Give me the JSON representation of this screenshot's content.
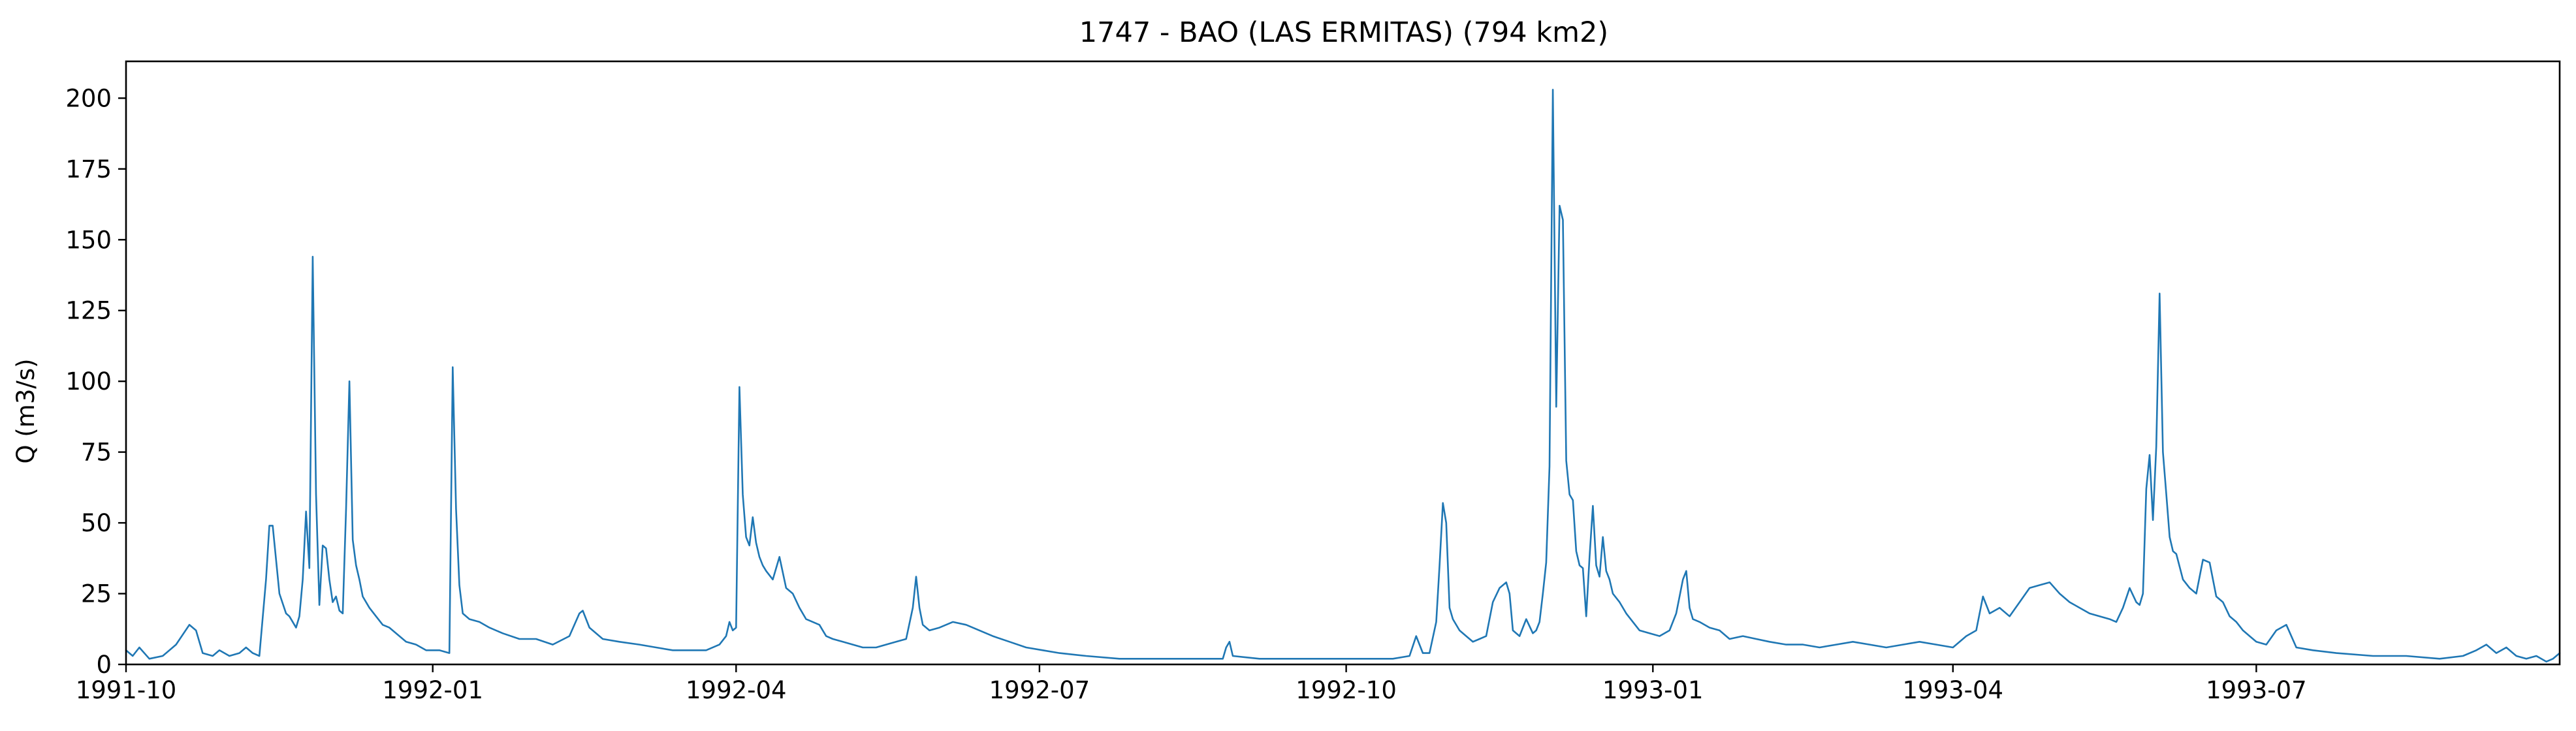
{
  "colors": {
    "line": "#1f77b4",
    "axis": "#000000",
    "background": "#ffffff"
  },
  "chart_data": {
    "type": "line",
    "title": "1747 - BAO (LAS ERMITAS) (794 km2)",
    "xlabel": "",
    "ylabel": "Q (m3/s)",
    "xlim": [
      "1991-10-01",
      "1993-09-30"
    ],
    "ylim": [
      0,
      213
    ],
    "grid": false,
    "legend": "none",
    "x_ticks": [
      "1991-10-01",
      "1992-01-01",
      "1992-04-01",
      "1992-07-01",
      "1992-10-01",
      "1993-01-01",
      "1993-04-01",
      "1993-07-01"
    ],
    "x_tick_labels": [
      "1991-10",
      "1992-01",
      "1992-04",
      "1992-07",
      "1992-10",
      "1993-01",
      "1993-04",
      "1993-07"
    ],
    "y_ticks": [
      0,
      25,
      50,
      75,
      100,
      125,
      150,
      175,
      200
    ],
    "y_tick_labels": [
      "0",
      "25",
      "50",
      "75",
      "100",
      "125",
      "150",
      "175",
      "200"
    ],
    "series": [
      {
        "x": [
          "1991-10-01",
          "1991-10-03",
          "1991-10-05",
          "1991-10-08",
          "1991-10-12",
          "1991-10-16",
          "1991-10-20",
          "1991-10-22",
          "1991-10-24",
          "1991-10-27",
          "1991-10-29",
          "1991-11-01",
          "1991-11-04",
          "1991-11-06",
          "1991-11-08",
          "1991-11-10",
          "1991-11-12",
          "1991-11-13",
          "1991-11-14",
          "1991-11-16",
          "1991-11-18",
          "1991-11-19",
          "1991-11-20",
          "1991-11-21",
          "1991-11-22",
          "1991-11-23",
          "1991-11-24",
          "1991-11-25",
          "1991-11-26",
          "1991-11-27",
          "1991-11-28",
          "1991-11-29",
          "1991-11-30",
          "1991-12-01",
          "1991-12-02",
          "1991-12-03",
          "1991-12-04",
          "1991-12-05",
          "1991-12-06",
          "1991-12-07",
          "1991-12-08",
          "1991-12-09",
          "1991-12-10",
          "1991-12-11",
          "1991-12-13",
          "1991-12-15",
          "1991-12-17",
          "1991-12-19",
          "1991-12-21",
          "1991-12-24",
          "1991-12-27",
          "1991-12-30",
          "1992-01-03",
          "1992-01-06",
          "1992-01-07",
          "1992-01-08",
          "1992-01-09",
          "1992-01-10",
          "1992-01-12",
          "1992-01-15",
          "1992-01-18",
          "1992-01-22",
          "1992-01-27",
          "1992-02-01",
          "1992-02-06",
          "1992-02-11",
          "1992-02-14",
          "1992-02-15",
          "1992-02-17",
          "1992-02-21",
          "1992-02-26",
          "1992-03-03",
          "1992-03-08",
          "1992-03-13",
          "1992-03-18",
          "1992-03-23",
          "1992-03-27",
          "1992-03-29",
          "1992-03-30",
          "1992-03-31",
          "1992-04-01",
          "1992-04-02",
          "1992-04-03",
          "1992-04-04",
          "1992-04-05",
          "1992-04-06",
          "1992-04-07",
          "1992-04-08",
          "1992-04-09",
          "1992-04-10",
          "1992-04-12",
          "1992-04-14",
          "1992-04-16",
          "1992-04-18",
          "1992-04-20",
          "1992-04-22",
          "1992-04-24",
          "1992-04-26",
          "1992-04-27",
          "1992-04-28",
          "1992-04-30",
          "1992-05-03",
          "1992-05-06",
          "1992-05-09",
          "1992-05-13",
          "1992-05-16",
          "1992-05-19",
          "1992-05-22",
          "1992-05-24",
          "1992-05-25",
          "1992-05-26",
          "1992-05-27",
          "1992-05-29",
          "1992-06-01",
          "1992-06-05",
          "1992-06-09",
          "1992-06-13",
          "1992-06-17",
          "1992-06-22",
          "1992-06-27",
          "1992-07-02",
          "1992-07-07",
          "1992-07-15",
          "1992-07-25",
          "1992-08-05",
          "1992-08-15",
          "1992-08-25",
          "1992-08-26",
          "1992-08-27",
          "1992-08-28",
          "1992-09-05",
          "1992-09-15",
          "1992-09-25",
          "1992-10-05",
          "1992-10-15",
          "1992-10-20",
          "1992-10-22",
          "1992-10-24",
          "1992-10-26",
          "1992-10-28",
          "1992-10-29",
          "1992-10-30",
          "1992-10-31",
          "1992-11-01",
          "1992-11-02",
          "1992-11-04",
          "1992-11-06",
          "1992-11-08",
          "1992-11-10",
          "1992-11-12",
          "1992-11-14",
          "1992-11-16",
          "1992-11-18",
          "1992-11-19",
          "1992-11-20",
          "1992-11-22",
          "1992-11-24",
          "1992-11-26",
          "1992-11-27",
          "1992-11-28",
          "1992-11-29",
          "1992-11-30",
          "1992-12-01",
          "1992-12-02",
          "1992-12-03",
          "1992-12-04",
          "1992-12-05",
          "1992-12-06",
          "1992-12-07",
          "1992-12-08",
          "1992-12-09",
          "1992-12-10",
          "1992-12-11",
          "1992-12-12",
          "1992-12-13",
          "1992-12-14",
          "1992-12-15",
          "1992-12-16",
          "1992-12-17",
          "1992-12-18",
          "1992-12-19",
          "1992-12-20",
          "1992-12-22",
          "1992-12-24",
          "1992-12-26",
          "1992-12-28",
          "1992-12-31",
          "1993-01-03",
          "1993-01-06",
          "1993-01-08",
          "1993-01-10",
          "1993-01-11",
          "1993-01-12",
          "1993-01-13",
          "1993-01-15",
          "1993-01-18",
          "1993-01-21",
          "1993-01-24",
          "1993-01-28",
          "1993-02-01",
          "1993-02-05",
          "1993-02-10",
          "1993-02-15",
          "1993-02-20",
          "1993-02-25",
          "1993-03-02",
          "1993-03-07",
          "1993-03-12",
          "1993-03-17",
          "1993-03-22",
          "1993-03-27",
          "1993-04-01",
          "1993-04-05",
          "1993-04-08",
          "1993-04-10",
          "1993-04-12",
          "1993-04-15",
          "1993-04-18",
          "1993-04-21",
          "1993-04-24",
          "1993-04-27",
          "1993-04-30",
          "1993-05-03",
          "1993-05-06",
          "1993-05-09",
          "1993-05-12",
          "1993-05-15",
          "1993-05-18",
          "1993-05-20",
          "1993-05-22",
          "1993-05-24",
          "1993-05-26",
          "1993-05-27",
          "1993-05-28",
          "1993-05-29",
          "1993-05-30",
          "1993-05-31",
          "1993-06-01",
          "1993-06-02",
          "1993-06-03",
          "1993-06-04",
          "1993-06-05",
          "1993-06-06",
          "1993-06-07",
          "1993-06-09",
          "1993-06-11",
          "1993-06-13",
          "1993-06-15",
          "1993-06-17",
          "1993-06-19",
          "1993-06-21",
          "1993-06-23",
          "1993-06-25",
          "1993-06-27",
          "1993-06-29",
          "1993-07-01",
          "1993-07-04",
          "1993-07-07",
          "1993-07-10",
          "1993-07-13",
          "1993-07-18",
          "1993-07-25",
          "1993-08-05",
          "1993-08-15",
          "1993-08-25",
          "1993-09-01",
          "1993-09-05",
          "1993-09-08",
          "1993-09-11",
          "1993-09-14",
          "1993-09-17",
          "1993-09-20",
          "1993-09-23",
          "1993-09-26",
          "1993-09-28",
          "1993-09-30"
        ],
        "y": [
          5,
          3,
          6,
          2,
          3,
          7,
          14,
          12,
          4,
          3,
          5,
          3,
          4,
          6,
          4,
          3,
          30,
          49,
          49,
          25,
          18,
          17,
          15,
          13,
          17,
          30,
          54,
          34,
          144,
          60,
          21,
          42,
          41,
          30,
          22,
          24,
          19,
          18,
          55,
          100,
          44,
          35,
          30,
          24,
          20,
          17,
          14,
          13,
          11,
          8,
          7,
          5,
          5,
          4,
          105,
          55,
          28,
          18,
          16,
          15,
          13,
          11,
          9,
          9,
          7,
          10,
          18,
          19,
          13,
          9,
          8,
          7,
          6,
          5,
          5,
          5,
          7,
          10,
          15,
          12,
          13,
          98,
          60,
          45,
          42,
          52,
          43,
          38,
          35,
          33,
          30,
          38,
          27,
          25,
          20,
          16,
          15,
          14,
          12,
          10,
          9,
          8,
          7,
          6,
          6,
          7,
          8,
          9,
          20,
          31,
          20,
          14,
          12,
          13,
          15,
          14,
          12,
          10,
          8,
          6,
          5,
          4,
          3,
          2,
          2,
          2,
          2,
          6,
          8,
          3,
          2,
          2,
          2,
          2,
          2,
          3,
          10,
          4,
          4,
          15,
          35,
          57,
          50,
          20,
          16,
          12,
          10,
          8,
          9,
          10,
          22,
          27,
          29,
          25,
          12,
          10,
          16,
          11,
          12,
          15,
          25,
          36,
          70,
          203,
          91,
          162,
          157,
          72,
          60,
          58,
          40,
          35,
          34,
          17,
          38,
          56,
          35,
          31,
          45,
          33,
          30,
          25,
          22,
          18,
          15,
          12,
          11,
          10,
          12,
          18,
          30,
          33,
          20,
          16,
          15,
          13,
          12,
          9,
          10,
          9,
          8,
          7,
          7,
          6,
          7,
          8,
          7,
          6,
          7,
          8,
          7,
          6,
          10,
          12,
          24,
          18,
          20,
          17,
          22,
          27,
          28,
          29,
          25,
          22,
          20,
          18,
          17,
          16,
          15,
          20,
          27,
          22,
          21,
          25,
          62,
          74,
          51,
          77,
          131,
          75,
          60,
          45,
          40,
          39,
          30,
          27,
          25,
          37,
          36,
          24,
          22,
          17,
          15,
          12,
          10,
          8,
          7,
          12,
          14,
          6,
          5,
          4,
          3,
          3,
          2,
          3,
          5,
          7,
          4,
          6,
          3,
          2,
          3,
          1,
          2,
          4
        ]
      }
    ]
  }
}
